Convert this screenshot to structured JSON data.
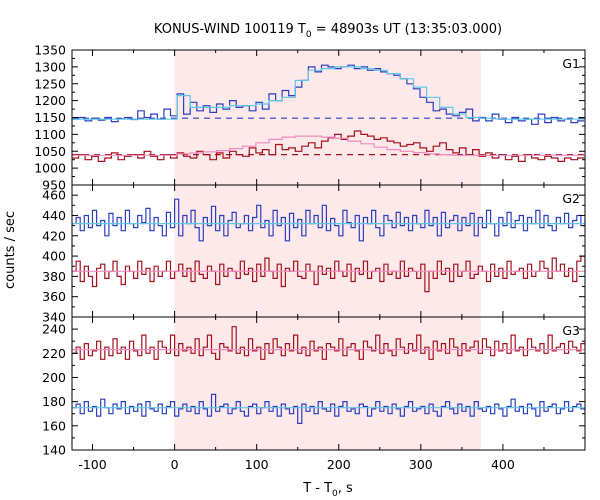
{
  "chart_data": {
    "type": "line",
    "title": "KONUS-WIND 100119 T",
    "title_sub": "0",
    "title_rest": " = 48903s UT (13:35:03.000)",
    "xlabel": "T - T",
    "xlabel_sub": "0",
    "xlabel_rest": ", s",
    "ylabel": "counts / sec",
    "xlim": [
      -125,
      500
    ],
    "xticks": [
      -100,
      0,
      100,
      200,
      300,
      400
    ],
    "highlight": {
      "x0": 0,
      "x1": 373,
      "color": "#fde8ea"
    },
    "colors": {
      "blue": "#2b3fbf",
      "red": "#a3121e",
      "cyan": "#5ec8e8",
      "pink": "#f08cc0"
    },
    "panels": [
      {
        "label": "G1",
        "ylim": [
          950,
          1350
        ],
        "yticks": [
          950,
          1000,
          1050,
          1100,
          1150,
          1200,
          1250,
          1300,
          1350
        ],
        "series": [
          {
            "color_key": "blue",
            "step": 8,
            "start": -125,
            "values": [
              1145,
              1150,
              1140,
              1148,
              1142,
              1150,
              1138,
              1146,
              1150,
              1144,
              1170,
              1150,
              1160,
              1145,
              1175,
              1155,
              1220,
              1160,
              1195,
              1170,
              1185,
              1165,
              1190,
              1175,
              1200,
              1180,
              1185,
              1170,
              1195,
              1175,
              1220,
              1200,
              1230,
              1215,
              1240,
              1260,
              1300,
              1285,
              1305,
              1300,
              1295,
              1300,
              1305,
              1295,
              1300,
              1290,
              1295,
              1285,
              1280,
              1275,
              1265,
              1250,
              1235,
              1210,
              1195,
              1170,
              1175,
              1160,
              1155,
              1165,
              1175,
              1140,
              1150,
              1140,
              1160,
              1145,
              1135,
              1150,
              1140,
              1145,
              1130,
              1160,
              1135,
              1150,
              1140,
              1145,
              1135,
              1140
            ]
          },
          {
            "color_key": "cyan",
            "step": 16,
            "start": -125,
            "values": [
              1145,
              1145,
              1145,
              1145,
              1145,
              1145,
              1145,
              1145,
              1215,
              1180,
              1180,
              1180,
              1185,
              1185,
              1190,
              1200,
              1210,
              1260,
              1290,
              1295,
              1300,
              1300,
              1295,
              1290,
              1280,
              1265,
              1240,
              1210,
              1180,
              1160,
              1150,
              1148,
              1146,
              1145,
              1145,
              1145,
              1145,
              1145,
              1145,
              1145
            ]
          },
          {
            "color_key": "red",
            "step": 8,
            "start": -125,
            "values": [
              1030,
              1040,
              1025,
              1035,
              1020,
              1030,
              1045,
              1025,
              1035,
              1040,
              1030,
              1050,
              1035,
              1025,
              1040,
              1030,
              1045,
              1035,
              1030,
              1050,
              1040,
              1025,
              1045,
              1030,
              1050,
              1040,
              1035,
              1060,
              1045,
              1055,
              1040,
              1070,
              1055,
              1060,
              1050,
              1065,
              1075,
              1060,
              1080,
              1090,
              1100,
              1085,
              1095,
              1110,
              1100,
              1095,
              1085,
              1090,
              1080,
              1075,
              1065,
              1070,
              1075,
              1060,
              1050,
              1065,
              1075,
              1055,
              1045,
              1060,
              1040,
              1055,
              1035,
              1045,
              1030,
              1040,
              1025,
              1035,
              1020,
              1040,
              1030,
              1025,
              1035,
              1030,
              1020,
              1030,
              1025,
              1030
            ]
          },
          {
            "color_key": "pink",
            "step": 16,
            "start": -125,
            "values": [
              1038,
              1038,
              1038,
              1038,
              1038,
              1038,
              1038,
              1038,
              1042,
              1045,
              1048,
              1052,
              1058,
              1065,
              1075,
              1085,
              1092,
              1095,
              1095,
              1092,
              1088,
              1080,
              1072,
              1062,
              1055,
              1050,
              1046,
              1042,
              1040,
              1038,
              1038,
              1038,
              1038,
              1038,
              1038,
              1038,
              1038,
              1038,
              1038,
              1038
            ]
          }
        ],
        "dashed": [
          {
            "color_key": "blue",
            "y": 1148
          },
          {
            "color_key": "red",
            "y": 1040
          }
        ]
      },
      {
        "label": "G2",
        "ylim": [
          340,
          470
        ],
        "yticks": [
          340,
          360,
          380,
          400,
          420,
          440,
          460
        ],
        "series": [
          {
            "color_key": "blue",
            "step": 5,
            "start": -125,
            "values": [
              432,
              438,
              425,
              440,
              428,
              445,
              430,
              435,
              420,
              442,
              430,
              438,
              425,
              445,
              432,
              428,
              440,
              433,
              447,
              425,
              438,
              430,
              420,
              443,
              428,
              456,
              420,
              440,
              432,
              445,
              428,
              415,
              438,
              430,
              449,
              425,
              440,
              420,
              435,
              443,
              428,
              432,
              440,
              425,
              438,
              450,
              428,
              435,
              420,
              445,
              430,
              438,
              415,
              442,
              428,
              436,
              420,
              445,
              432,
              440,
              428,
              450,
              425,
              437,
              430,
              420,
              445,
              433,
              428,
              440,
              415,
              438,
              432,
              445,
              428,
              420,
              440,
              435,
              428,
              443,
              430,
              438,
              425,
              440,
              432,
              428,
              445,
              430,
              438,
              420,
              443,
              428,
              435,
              440,
              425,
              438,
              430,
              442,
              420,
              438,
              428,
              445,
              432,
              420,
              438,
              430,
              443,
              428,
              435,
              440,
              425,
              438,
              432,
              445,
              428,
              440,
              430,
              425,
              438,
              432,
              442,
              428,
              435,
              440,
              430,
              438
            ]
          },
          {
            "color_key": "cyan",
            "step": 25,
            "start": -125,
            "values": [
              432,
              432,
              432,
              432,
              432,
              432,
              432,
              432,
              432,
              432,
              432,
              432,
              432,
              432,
              432,
              432,
              432,
              432,
              432,
              432,
              432,
              432,
              432,
              432,
              432,
              432
            ]
          },
          {
            "color_key": "red",
            "step": 5,
            "start": -125,
            "values": [
              385,
              395,
              375,
              390,
              380,
              370,
              388,
              392,
              378,
              385,
              395,
              380,
              372,
              390,
              385,
              378,
              395,
              382,
              388,
              375,
              390,
              380,
              385,
              395,
              378,
              385,
              392,
              380,
              388,
              375,
              395,
              382,
              378,
              390,
              385,
              372,
              392,
              380,
              388,
              385,
              378,
              395,
              382,
              388,
              375,
              392,
              380,
              398,
              385,
              378,
              392,
              370,
              388,
              385,
              395,
              380,
              378,
              392,
              385,
              372,
              390,
              382,
              388,
              378,
              395,
              385,
              380,
              392,
              375,
              388,
              382,
              395,
              378,
              385,
              388,
              375,
              392,
              382,
              385,
              378,
              395,
              380,
              388,
              385,
              378,
              392,
              365,
              385,
              378,
              395,
              382,
              388,
              375,
              392,
              380,
              385,
              395,
              378,
              382,
              390,
              385,
              375,
              392,
              380,
              388,
              378,
              395,
              382,
              385,
              388,
              378,
              392,
              380,
              385,
              395,
              388,
              378,
              398,
              385,
              392,
              380,
              388,
              375,
              395,
              400,
              392
            ]
          },
          {
            "color_key": "pink",
            "step": 25,
            "start": -125,
            "values": [
              385,
              385,
              385,
              385,
              385,
              385,
              385,
              385,
              385,
              385,
              385,
              385,
              385,
              385,
              385,
              385,
              385,
              385,
              385,
              385,
              385,
              385,
              385,
              385,
              385,
              385
            ]
          }
        ],
        "dashed": []
      },
      {
        "label": "G3",
        "ylim": [
          140,
          250
        ],
        "yticks": [
          140,
          160,
          180,
          200,
          220,
          240
        ],
        "series": [
          {
            "color_key": "red",
            "step": 5,
            "start": -125,
            "values": [
              220,
              225,
              215,
              228,
              218,
              222,
              230,
              215,
              225,
              218,
              232,
              220,
              225,
              215,
              230,
              222,
              218,
              235,
              220,
              225,
              215,
              230,
              225,
              220,
              235,
              218,
              228,
              222,
              225,
              220,
              232,
              218,
              225,
              235,
              220,
              215,
              228,
              225,
              222,
              242,
              220,
              225,
              218,
              232,
              222,
              225,
              215,
              228,
              220,
              232,
              225,
              218,
              228,
              222,
              235,
              220,
              225,
              218,
              230,
              222,
              225,
              215,
              228,
              225,
              222,
              232,
              218,
              225,
              228,
              222,
              215,
              230,
              225,
              222,
              235,
              220,
              228,
              222,
              218,
              232,
              225,
              220,
              228,
              222,
              235,
              220,
              225,
              215,
              230,
              222,
              228,
              220,
              232,
              225,
              218,
              228,
              222,
              225,
              230,
              220,
              232,
              225,
              218,
              230,
              222,
              228,
              220,
              235,
              222,
              225,
              218,
              232,
              225,
              222,
              228,
              220,
              235,
              222,
              225,
              228,
              220,
              230,
              225,
              222,
              228,
              226
            ]
          },
          {
            "color_key": "pink",
            "step": 25,
            "start": -125,
            "values": [
              223,
              223,
              223,
              223,
              223,
              223,
              223,
              223,
              223,
              223,
              223,
              223,
              223,
              223,
              223,
              223,
              223,
              223,
              223,
              223,
              223,
              223,
              223,
              223,
              223,
              223
            ]
          },
          {
            "color_key": "blue",
            "step": 5,
            "start": -125,
            "values": [
              175,
              178,
              170,
              180,
              172,
              176,
              168,
              182,
              175,
              170,
              178,
              174,
              180,
              170,
              176,
              172,
              178,
              168,
              180,
              174,
              172,
              178,
              170,
              176,
              180,
              168,
              174,
              178,
              172,
              176,
              170,
              180,
              174,
              168,
              186,
              172,
              176,
              178,
              170,
              174,
              180,
              172,
              168,
              176,
              178,
              170,
              175,
              180,
              172,
              176,
              168,
              178,
              174,
              170,
              176,
              162,
              178,
              172,
              176,
              170,
              180,
              174,
              172,
              178,
              168,
              176,
              180,
              172,
              174,
              170,
              178,
              176,
              168,
              174,
              180,
              172,
              176,
              170,
              178,
              174,
              168,
              176,
              180,
              172,
              174,
              176,
              170,
              178,
              172,
              168,
              176,
              180,
              174,
              170,
              178,
              172,
              176,
              168,
              180,
              174,
              172,
              176,
              170,
              178,
              174,
              168,
              176,
              182,
              172,
              176,
              170,
              178,
              174,
              168,
              180,
              172,
              176,
              178,
              170,
              174,
              180,
              172,
              176,
              178,
              174,
              172
            ]
          },
          {
            "color_key": "cyan",
            "step": 25,
            "start": -125,
            "values": [
              175,
              175,
              175,
              175,
              175,
              175,
              175,
              175,
              175,
              175,
              175,
              175,
              175,
              175,
              175,
              175,
              175,
              175,
              175,
              175,
              175,
              175,
              175,
              175,
              175,
              175
            ]
          }
        ],
        "dashed": []
      }
    ]
  }
}
